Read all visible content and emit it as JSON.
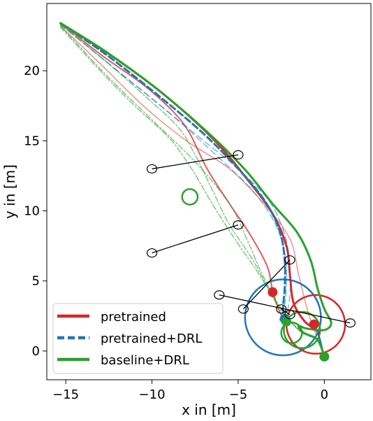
{
  "chart_data": {
    "type": "line",
    "title": "",
    "xlabel": "x in [m]",
    "ylabel": "y in [m]",
    "xlim": [
      -16.1,
      2.7
    ],
    "ylim": [
      -2.05,
      24.8
    ],
    "xticks": [
      -15,
      -10,
      -5,
      0
    ],
    "yticks": [
      0,
      5,
      10,
      15,
      20
    ],
    "grid": false,
    "legend_position": "lower-left",
    "legend": [
      {
        "label": "pretrained",
        "color": "#d62728",
        "style": "solid"
      },
      {
        "label": "pretrained+DRL",
        "color": "#1f77b4",
        "style": "dashed"
      },
      {
        "label": "baseline+DRL",
        "color": "#2ca02c",
        "style": "solid"
      }
    ],
    "series": [
      {
        "name": "pretrained",
        "color": "#d62728",
        "style": "solid",
        "width": 3,
        "opacity": 1,
        "points": [
          [
            -15.3,
            23.4
          ],
          [
            -12.5,
            21.2
          ],
          [
            -9.5,
            18.5
          ],
          [
            -6.5,
            15.2
          ],
          [
            -4.5,
            12.3
          ],
          [
            -3,
            9.8
          ],
          [
            -2.2,
            7.5
          ],
          [
            -2,
            5.5
          ],
          [
            -1.8,
            3.5
          ],
          [
            -1.2,
            2.2
          ],
          [
            -0.6,
            1.6
          ],
          [
            -0.3,
            1.3
          ]
        ]
      },
      {
        "name": "pretrained",
        "color": "#d62728",
        "style": "solid",
        "width": 2,
        "opacity": 0.75,
        "points": [
          [
            -15.3,
            23.4
          ],
          [
            -12.8,
            21
          ],
          [
            -10.5,
            19
          ],
          [
            -8.7,
            17
          ],
          [
            -7.8,
            15.5
          ],
          [
            -6.8,
            13
          ],
          [
            -5.5,
            10.5
          ],
          [
            -4.3,
            8.3
          ],
          [
            -3.3,
            6
          ],
          [
            -3,
            4.3
          ],
          [
            -2.6,
            2.8
          ],
          [
            -2.2,
            2.1
          ]
        ]
      },
      {
        "name": "pretrained",
        "color": "#d62728",
        "style": "solid",
        "width": 1.5,
        "opacity": 0.5,
        "points": [
          [
            -15.3,
            23.2
          ],
          [
            -13,
            20.5
          ],
          [
            -10.5,
            17.5
          ],
          [
            -8,
            15
          ],
          [
            -5.5,
            13
          ],
          [
            -3.5,
            10.5
          ],
          [
            -2,
            8
          ],
          [
            -1.5,
            5.5
          ],
          [
            -1,
            3
          ],
          [
            -0.5,
            1.2
          ]
        ]
      },
      {
        "name": "pretrained+DRL",
        "color": "#1f77b4",
        "style": "dashed",
        "width": 3,
        "opacity": 1,
        "points": [
          [
            -15.3,
            23.4
          ],
          [
            -12.6,
            21.1
          ],
          [
            -9.7,
            18.3
          ],
          [
            -7,
            15.5
          ],
          [
            -5,
            13
          ],
          [
            -3.5,
            10.8
          ],
          [
            -2.6,
            8.6
          ],
          [
            -2.3,
            6.5
          ],
          [
            -2.3,
            4.5
          ],
          [
            -2.4,
            3
          ],
          [
            -2.3,
            2.3
          ]
        ]
      },
      {
        "name": "pretrained+DRL",
        "color": "#1f77b4",
        "style": "dashed",
        "width": 1.5,
        "opacity": 0.55,
        "points": [
          [
            -15.3,
            23.3
          ],
          [
            -12.3,
            20.3
          ],
          [
            -9.5,
            17.5
          ],
          [
            -7,
            15
          ],
          [
            -5,
            13
          ],
          [
            -3.2,
            10.7
          ],
          [
            -2.3,
            8.3
          ],
          [
            -2,
            6
          ],
          [
            -2,
            4
          ],
          [
            -2.2,
            2.6
          ],
          [
            -2.5,
            2
          ]
        ]
      },
      {
        "name": "pretrained+DRL",
        "color": "#1f77b4",
        "style": "dashed",
        "width": 1.5,
        "opacity": 0.55,
        "points": [
          [
            -15.3,
            23.3
          ],
          [
            -12,
            20
          ],
          [
            -9,
            17
          ],
          [
            -6.3,
            14
          ],
          [
            -4.2,
            11.5
          ],
          [
            -2.9,
            9.2
          ],
          [
            -2.3,
            7
          ],
          [
            -2.2,
            5
          ],
          [
            -2.3,
            3.3
          ],
          [
            -2.6,
            2.2
          ]
        ]
      },
      {
        "name": "pretrained+DRL",
        "color": "#1f77b4",
        "style": "solid",
        "width": 2.5,
        "opacity": 1,
        "points": [
          [
            -0.6,
            1.9
          ],
          [
            -0.3,
            1
          ],
          [
            -0.1,
            0
          ],
          [
            0,
            -0.6
          ]
        ]
      },
      {
        "name": "baseline+DRL",
        "color": "#2ca02c",
        "style": "solid",
        "width": 3,
        "opacity": 1,
        "points": [
          [
            -15.3,
            23.4
          ],
          [
            -12.6,
            21.3
          ],
          [
            -9.5,
            18.5
          ],
          [
            -6.5,
            15.3
          ],
          [
            -4.5,
            12.8
          ],
          [
            -3,
            10.5
          ],
          [
            -1.6,
            8.5
          ],
          [
            -0.8,
            6.5
          ],
          [
            -0.4,
            4.5
          ],
          [
            0,
            3
          ],
          [
            0.4,
            2
          ],
          [
            0,
            1.5
          ],
          [
            -1,
            1.6
          ],
          [
            -1.5,
            1.8
          ],
          [
            -1.2,
            1.3
          ],
          [
            -0.4,
            0.8
          ],
          [
            0,
            -0.4
          ]
        ]
      },
      {
        "name": "baseline+DRL",
        "color": "#2ca02c",
        "style": "dashdot",
        "width": 1.5,
        "opacity": 0.6,
        "points": [
          [
            -15.3,
            23.2
          ],
          [
            -12.5,
            19.5
          ],
          [
            -10,
            16.5
          ],
          [
            -7.5,
            13.5
          ],
          [
            -5.5,
            10.5
          ],
          [
            -4.5,
            8
          ],
          [
            -3.8,
            6
          ],
          [
            -3.2,
            4.5
          ],
          [
            -2.6,
            3.2
          ],
          [
            -2,
            2.2
          ],
          [
            -1.3,
            1.4
          ],
          [
            -0.5,
            1
          ]
        ]
      },
      {
        "name": "baseline+DRL",
        "color": "#2ca02c",
        "style": "dashdot",
        "width": 1.5,
        "opacity": 0.6,
        "points": [
          [
            -15.3,
            23.1
          ],
          [
            -13,
            20
          ],
          [
            -11,
            17.5
          ],
          [
            -9,
            15.2
          ],
          [
            -7.7,
            13
          ],
          [
            -6.5,
            10.5
          ],
          [
            -5.2,
            8
          ],
          [
            -3.8,
            5.5
          ],
          [
            -2.8,
            3.5
          ],
          [
            -2.1,
            2.4
          ],
          [
            -1.5,
            1.5
          ],
          [
            -0.8,
            1
          ]
        ]
      },
      {
        "name": "baseline+DRL",
        "color": "#2ca02c",
        "style": "dashdot",
        "width": 1.5,
        "opacity": 0.6,
        "points": [
          [
            -15.3,
            23.3
          ],
          [
            -12.8,
            20.8
          ],
          [
            -10.5,
            18.3
          ],
          [
            -8.5,
            16
          ],
          [
            -7.5,
            14
          ],
          [
            -6.5,
            11.5
          ],
          [
            -5.5,
            9
          ],
          [
            -4.3,
            6.8
          ],
          [
            -3.4,
            4.8
          ],
          [
            -2.6,
            3
          ],
          [
            -1.9,
            2
          ],
          [
            -1.2,
            1.2
          ]
        ]
      }
    ],
    "target_circles": [
      {
        "x": -2.4,
        "y": 2.4,
        "r": 2.2,
        "color": "#1f77b4"
      },
      {
        "x": -0.5,
        "y": 1.9,
        "r": 1.7,
        "color": "#d62728"
      },
      {
        "x": -1.3,
        "y": 1.5,
        "r": 1.05,
        "color": "#2ca02c"
      },
      {
        "x": -1.9,
        "y": 1.3,
        "r": 0.6,
        "color": "#2ca02c"
      },
      {
        "x": -7.8,
        "y": 11.0,
        "r": 0.45,
        "color": "#2ca02c"
      }
    ],
    "end_markers": [
      {
        "x": -3.0,
        "y": 4.2,
        "color": "#d62728"
      },
      {
        "x": -0.6,
        "y": 1.9,
        "color": "#d62728"
      },
      {
        "x": -2.3,
        "y": 2.3,
        "color": "#1f77b4"
      },
      {
        "x": -2.2,
        "y": 2.1,
        "color": "#2ca02c"
      },
      {
        "x": 0.0,
        "y": -0.4,
        "color": "#2ca02c"
      }
    ],
    "obstacles": [
      {
        "x1": -10.0,
        "y1": 13.0,
        "x2": -5.0,
        "y2": 14.0
      },
      {
        "x1": -10.0,
        "y1": 7.0,
        "x2": -5.0,
        "y2": 9.0
      },
      {
        "x1": -4.7,
        "y1": 3.0,
        "x2": -2.0,
        "y2": 6.5
      },
      {
        "x1": -6.1,
        "y1": 4.0,
        "x2": 1.5,
        "y2": 2.0
      },
      {
        "x1": -2.5,
        "y1": 3.0,
        "x2": -2.0,
        "y2": 2.6
      }
    ]
  }
}
